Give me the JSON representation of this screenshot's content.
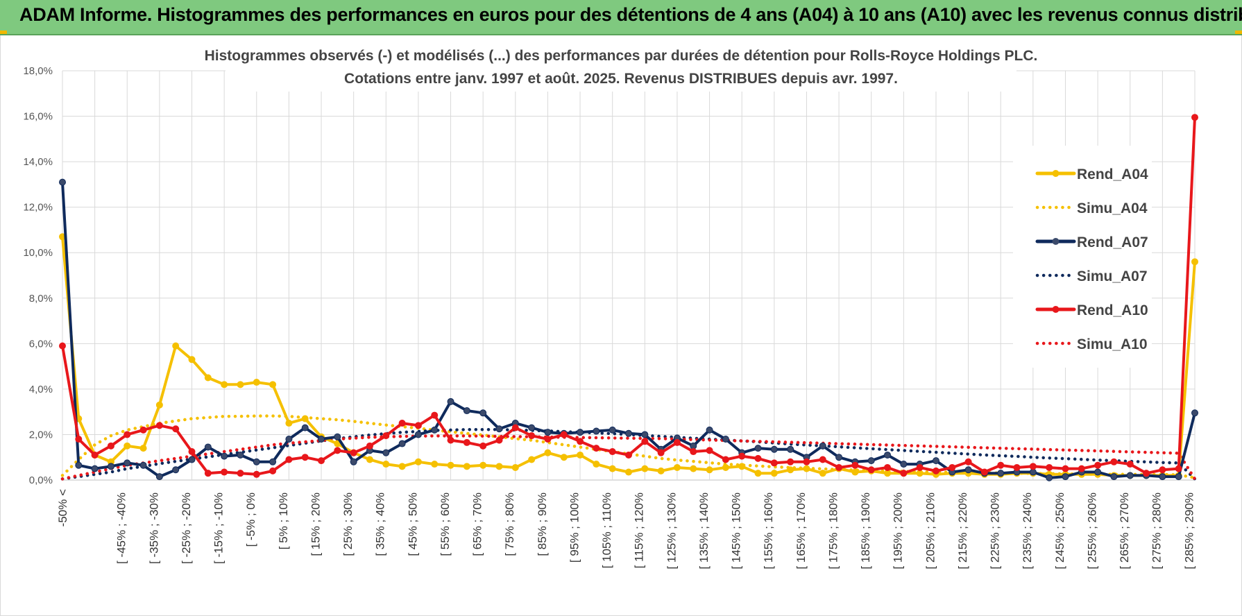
{
  "header": {
    "title": "ADAM Informe. Histogrammes des performances en euros pour des détentions de 4 ans (A04) à 10 ans (A10) avec les revenus connus distribués"
  },
  "chart_data": {
    "type": "line",
    "title": "Histogrammes observés (-) et modélisés (...) des performances par durées de détention pour Rolls-Royce Holdings PLC.",
    "subtitle": "Cotations entre janv. 1997 et août. 2025. Revenus DISTRIBUES depuis avr. 1997.",
    "xlabel": "",
    "ylabel": "",
    "ylim": [
      0,
      18
    ],
    "y_ticks": [
      "0,0%",
      "2,0%",
      "4,0%",
      "6,0%",
      "8,0%",
      "10,0%",
      "12,0%",
      "14,0%",
      "16,0%",
      "18,0%"
    ],
    "grid": true,
    "legend_position": "right",
    "x_tick_labels": [
      "-50% <",
      "[ -45% ; -40%",
      "[ -35% ; -30%",
      "[ -25% ; -20%",
      "[ -15% ; -10%",
      "[ -5% ; 0%",
      "[ 5% ; 10%",
      "[ 15% ; 20%",
      "[ 25% ; 30%",
      "[ 35% ; 40%",
      "[ 45% ; 50%",
      "[ 55% ; 60%",
      "[ 65% ; 70%",
      "[ 75% ; 80%",
      "[ 85% ; 90%",
      "[ 95% ; 100%",
      "[ 105% ; 110%",
      "[ 115% ; 120%",
      "[ 125% ; 130%",
      "[ 135% ; 140%",
      "[ 145% ; 150%",
      "[ 155% ; 160%",
      "[ 165% ; 170%",
      "[ 175% ; 180%",
      "[ 185% ; 190%",
      "[ 195% ; 200%",
      "[ 205% ; 210%",
      "[ 215% ; 220%",
      "[ 225% ; 230%",
      "[ 235% ; 240%",
      "[ 245% ; 250%",
      "[ 255% ; 260%",
      "[ 265% ; 270%",
      "[ 275% ; 280%",
      "[ 285% ; 290%"
    ],
    "series": [
      {
        "name": "Rend_A04",
        "style": "solid",
        "color": "#f5c000",
        "values": [
          10.7,
          2.7,
          1.1,
          0.8,
          1.5,
          1.4,
          3.3,
          5.9,
          5.3,
          4.5,
          4.2,
          4.2,
          4.3,
          4.2,
          2.5,
          2.7,
          1.9,
          1.6,
          1.2,
          0.9,
          0.7,
          0.6,
          0.8,
          0.7,
          0.65,
          0.6,
          0.65,
          0.6,
          0.55,
          0.9,
          1.2,
          1.0,
          1.1,
          0.7,
          0.5,
          0.35,
          0.5,
          0.4,
          0.55,
          0.5,
          0.45,
          0.55,
          0.6,
          0.3,
          0.3,
          0.45,
          0.5,
          0.3,
          0.5,
          0.35,
          0.4,
          0.3,
          0.3,
          0.3,
          0.25,
          0.3,
          0.3,
          0.25,
          0.25,
          0.3,
          0.3,
          0.25,
          0.25,
          0.25,
          0.25,
          0.2,
          0.2,
          0.2,
          0.2,
          0.2,
          9.6
        ]
      },
      {
        "name": "Simu_A04",
        "style": "dotted",
        "color": "#f5c000",
        "values": [
          0.2,
          0.9,
          1.55,
          1.95,
          2.2,
          2.35,
          2.5,
          2.6,
          2.7,
          2.75,
          2.8,
          2.8,
          2.82,
          2.82,
          2.8,
          2.75,
          2.7,
          2.65,
          2.58,
          2.5,
          2.42,
          2.35,
          2.28,
          2.2,
          2.12,
          2.05,
          1.98,
          1.9,
          1.82,
          1.75,
          1.65,
          1.55,
          1.45,
          1.35,
          1.25,
          1.15,
          1.05,
          0.95,
          0.88,
          0.82,
          0.76,
          0.7,
          0.66,
          0.62,
          0.58,
          0.55,
          0.52,
          0.49,
          0.46,
          0.44,
          0.42,
          0.4,
          0.38,
          0.36,
          0.35,
          0.34,
          0.33,
          0.32,
          0.31,
          0.3,
          0.29,
          0.28,
          0.27,
          0.26,
          0.26,
          0.25,
          0.25,
          0.24,
          0.24,
          0.23,
          0.1
        ]
      },
      {
        "name": "Rend_A07",
        "style": "solid",
        "color": "#0f2a5c",
        "values": [
          13.1,
          0.65,
          0.5,
          0.6,
          0.75,
          0.65,
          0.15,
          0.45,
          0.9,
          1.45,
          1.05,
          1.1,
          0.8,
          0.8,
          1.8,
          2.3,
          1.8,
          1.9,
          0.8,
          1.3,
          1.2,
          1.6,
          2.0,
          2.2,
          3.45,
          3.05,
          2.95,
          2.25,
          2.5,
          2.3,
          2.1,
          2.05,
          2.1,
          2.15,
          2.2,
          2.05,
          2.0,
          1.35,
          1.85,
          1.5,
          2.2,
          1.8,
          1.2,
          1.4,
          1.35,
          1.35,
          1.0,
          1.5,
          1.0,
          0.8,
          0.85,
          1.1,
          0.7,
          0.7,
          0.85,
          0.35,
          0.45,
          0.3,
          0.3,
          0.35,
          0.35,
          0.1,
          0.15,
          0.35,
          0.35,
          0.15,
          0.2,
          0.2,
          0.15,
          0.15,
          2.95
        ]
      },
      {
        "name": "Simu_A07",
        "style": "dotted",
        "color": "#0f2a5c",
        "values": [
          0.05,
          0.15,
          0.25,
          0.35,
          0.5,
          0.6,
          0.72,
          0.82,
          0.92,
          1.02,
          1.12,
          1.22,
          1.32,
          1.42,
          1.52,
          1.62,
          1.72,
          1.82,
          1.9,
          1.98,
          2.04,
          2.1,
          2.14,
          2.18,
          2.2,
          2.22,
          2.22,
          2.22,
          2.2,
          2.18,
          2.16,
          2.13,
          2.1,
          2.07,
          2.04,
          2.0,
          1.96,
          1.92,
          1.88,
          1.84,
          1.8,
          1.76,
          1.72,
          1.68,
          1.63,
          1.58,
          1.54,
          1.5,
          1.46,
          1.42,
          1.38,
          1.34,
          1.3,
          1.26,
          1.22,
          1.18,
          1.14,
          1.1,
          1.07,
          1.04,
          1.0,
          0.97,
          0.94,
          0.91,
          0.88,
          0.85,
          0.82,
          0.8,
          0.77,
          0.75,
          0.05
        ]
      },
      {
        "name": "Rend_A10",
        "style": "solid",
        "color": "#e8171b",
        "values": [
          5.9,
          1.8,
          1.1,
          1.5,
          2.0,
          2.2,
          2.4,
          2.25,
          1.25,
          0.3,
          0.35,
          0.3,
          0.25,
          0.4,
          0.9,
          1.0,
          0.85,
          1.3,
          1.2,
          1.5,
          1.95,
          2.5,
          2.4,
          2.85,
          1.75,
          1.65,
          1.5,
          1.75,
          2.3,
          1.95,
          1.8,
          2.0,
          1.7,
          1.4,
          1.25,
          1.1,
          1.7,
          1.2,
          1.65,
          1.25,
          1.3,
          0.9,
          1.05,
          0.95,
          0.75,
          0.8,
          0.8,
          0.9,
          0.55,
          0.65,
          0.45,
          0.55,
          0.3,
          0.55,
          0.4,
          0.55,
          0.8,
          0.35,
          0.65,
          0.55,
          0.6,
          0.55,
          0.5,
          0.5,
          0.65,
          0.8,
          0.7,
          0.3,
          0.45,
          0.5,
          15.95
        ]
      },
      {
        "name": "Simu_A10",
        "style": "dotted",
        "color": "#e8171b",
        "values": [
          0.05,
          0.2,
          0.35,
          0.5,
          0.65,
          0.75,
          0.85,
          0.95,
          1.05,
          1.15,
          1.25,
          1.35,
          1.45,
          1.55,
          1.62,
          1.68,
          1.74,
          1.8,
          1.84,
          1.88,
          1.9,
          1.92,
          1.93,
          1.94,
          1.94,
          1.94,
          1.93,
          1.92,
          1.91,
          1.9,
          1.89,
          1.88,
          1.87,
          1.86,
          1.85,
          1.84,
          1.83,
          1.82,
          1.8,
          1.78,
          1.76,
          1.74,
          1.72,
          1.7,
          1.68,
          1.66,
          1.64,
          1.62,
          1.6,
          1.58,
          1.56,
          1.54,
          1.52,
          1.5,
          1.48,
          1.46,
          1.44,
          1.42,
          1.4,
          1.38,
          1.36,
          1.34,
          1.32,
          1.3,
          1.28,
          1.26,
          1.24,
          1.22,
          1.2,
          1.18,
          0.05
        ]
      }
    ]
  }
}
